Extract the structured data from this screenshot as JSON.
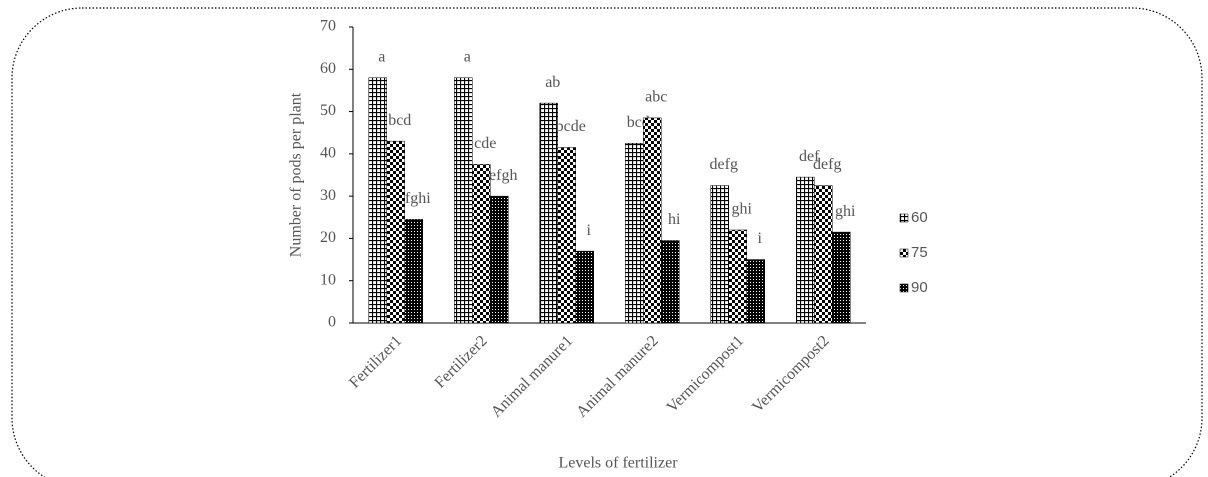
{
  "chart_data": {
    "type": "bar",
    "x_label": "Levels of fertilizer",
    "y_label": "Number of pods per plant",
    "categories": [
      "Fertilizer1",
      "Fertilizer2",
      "Animal manure1",
      "Animal manure2",
      "Vermicompost1",
      "Vermicompost2"
    ],
    "series": [
      {
        "name": "60",
        "color": "#000000",
        "pattern": "grid",
        "values": [
          58,
          58,
          52,
          42.5,
          32.5,
          34.5
        ],
        "letters": [
          "a",
          "a",
          "ab",
          "bcd",
          "defg",
          "def"
        ]
      },
      {
        "name": "75",
        "color": "#000000",
        "pattern": "checker",
        "values": [
          43,
          37.5,
          41.5,
          48.5,
          22,
          32.5
        ],
        "letters": [
          "bcd",
          "cde",
          "bcde",
          "abc",
          "ghi",
          "defg"
        ]
      },
      {
        "name": "90",
        "color": "#000000",
        "pattern": "dense",
        "values": [
          24.5,
          30,
          17,
          19.5,
          15,
          21.5
        ],
        "letters": [
          "fghi",
          "efgh",
          "i",
          "hi",
          "i",
          "ghi"
        ]
      }
    ],
    "ylim": [
      0,
      70
    ],
    "yticks": [
      0,
      10,
      20,
      30,
      40,
      50,
      60,
      70
    ],
    "legend": "right"
  }
}
